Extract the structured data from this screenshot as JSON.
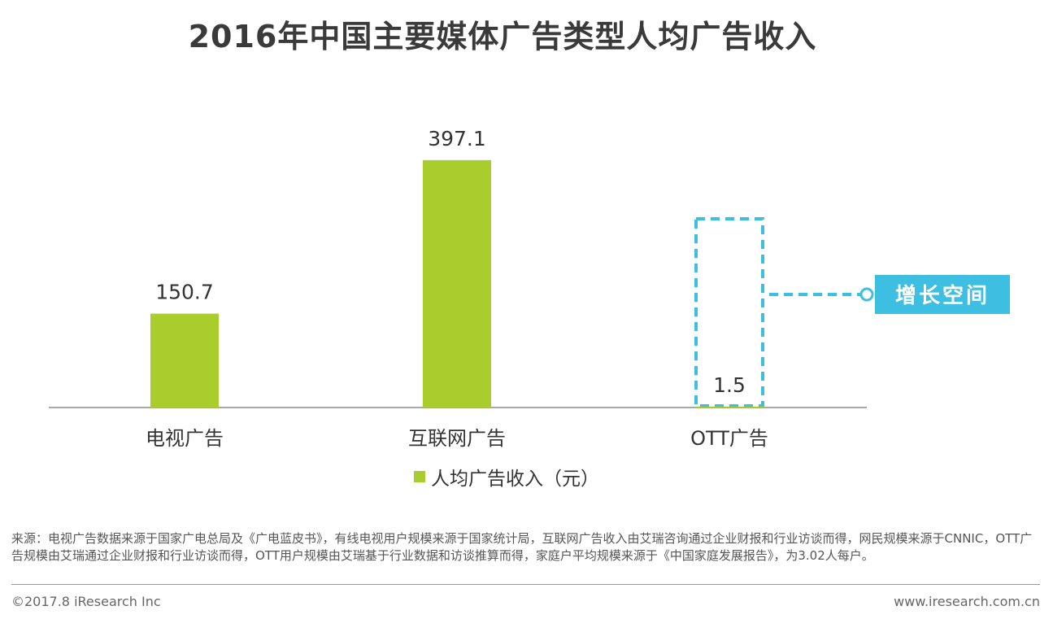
{
  "chart_data": {
    "type": "bar",
    "title": "2016年中国主要媒体广告类型人均广告收入",
    "categories": [
      "电视广告",
      "互联网广告",
      "OTT广告"
    ],
    "series": [
      {
        "name": "人均广告收入（元）",
        "values": [
          150.7,
          397.1,
          1.5
        ]
      }
    ],
    "data_labels": [
      "150.7",
      "397.1",
      "1.5"
    ],
    "ylim": [
      0,
      470
    ],
    "grid": false,
    "legend_position": "bottom",
    "annotation": "增长空间",
    "colors": {
      "bar": "#a9cd2c",
      "highlight": "#3cbfe0",
      "axis": "#8c8c8c"
    }
  },
  "footer": {
    "source_note": "来源：电视广告数据来源于国家广电总局及《广电蓝皮书》，有线电视用户规模来源于国家统计局，互联网广告收入由艾瑞咨询通过企业财报和行业访谈而得，网民规模来源于CNNIC，OTT广告规模由艾瑞通过企业财报和行业访谈而得，OTT用户规模由艾瑞基于行业数据和访谈推算而得，家庭户平均规模来源于《中国家庭发展报告》，为3.02人每户。",
    "copyright": "©2017.8 iResearch Inc",
    "website": "www.iresearch.com.cn"
  }
}
